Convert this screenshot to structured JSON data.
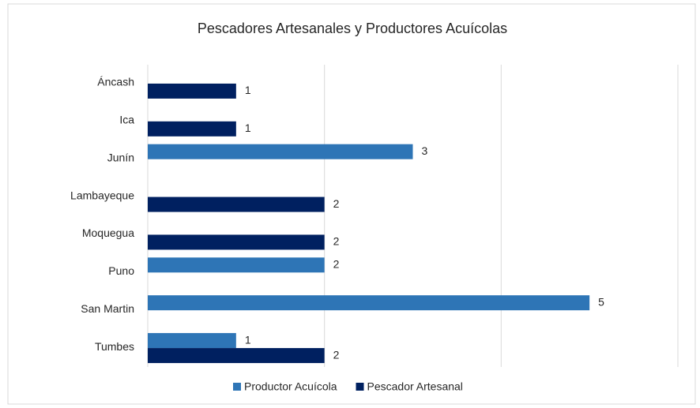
{
  "chart_data": {
    "type": "bar",
    "orientation": "horizontal",
    "title": "Pescadores Artesanales y Productores Acuícolas",
    "categories": [
      "Áncash",
      "Ica",
      "Junín",
      "Lambayeque",
      "Moquegua",
      "Puno",
      "San Martin",
      "Tumbes"
    ],
    "series": [
      {
        "name": "Productor Acuícola",
        "color": "#2e75b6",
        "values": [
          null,
          null,
          3,
          null,
          null,
          2,
          5,
          1
        ]
      },
      {
        "name": "Pescador Artesanal",
        "color": "#002060",
        "values": [
          1,
          1,
          null,
          2,
          2,
          null,
          null,
          2
        ]
      }
    ],
    "xlim": [
      0,
      6
    ],
    "xticks": [
      0,
      2,
      4,
      6
    ],
    "tick_labels": false,
    "grid": true,
    "legend": "bottom"
  }
}
